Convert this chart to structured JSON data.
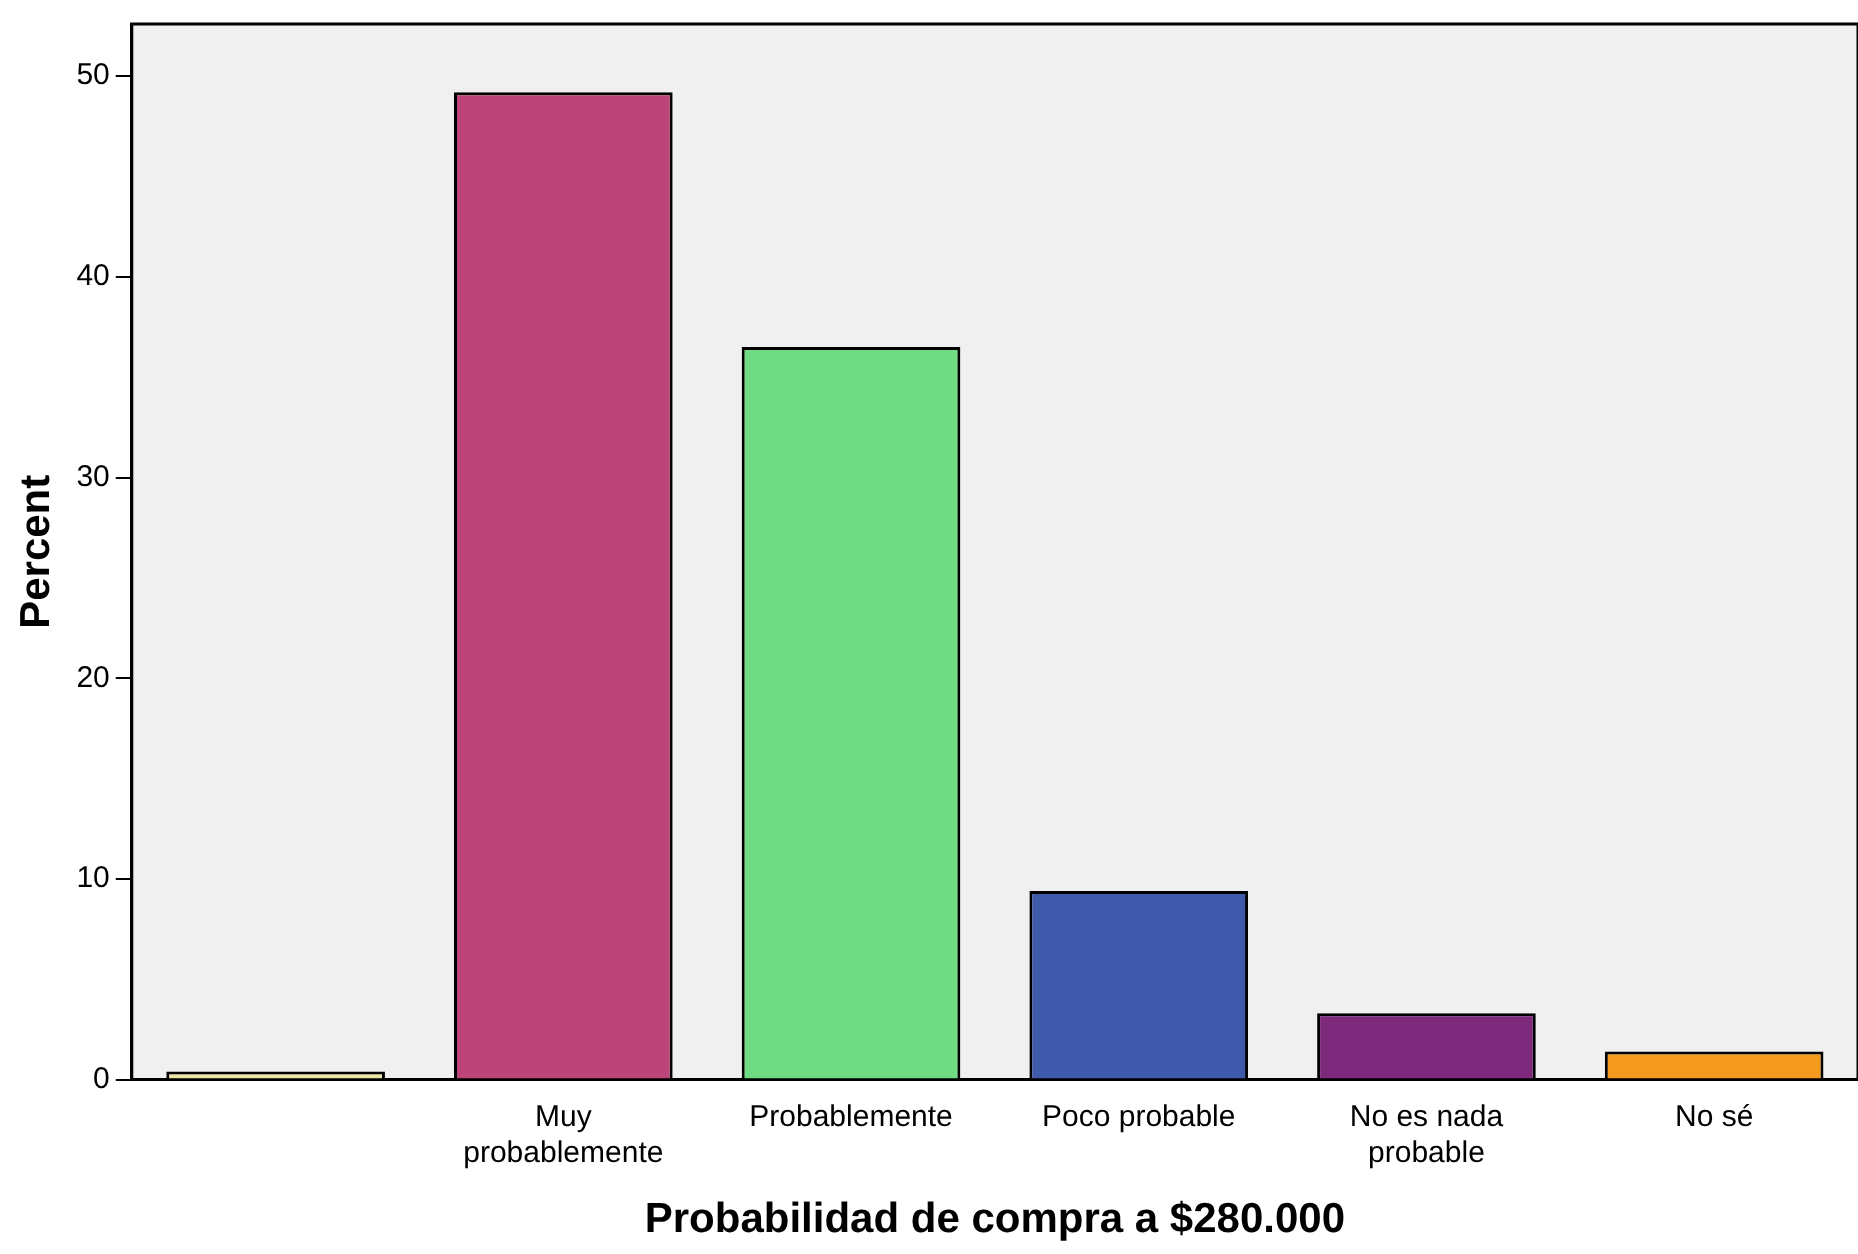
{
  "chart_data": {
    "type": "bar",
    "xlabel": "Probabilidad de compra a $280.000",
    "ylabel": "Percent",
    "categories": [
      null,
      "Muy probablemente",
      "Probablemente",
      "Poco probable",
      "No es nada probable",
      "No sé"
    ],
    "values": [
      0.4,
      49.2,
      36.5,
      9.4,
      3.3,
      1.4
    ],
    "colors": [
      "#ebe5a3",
      "#bc4479",
      "#6fdb82",
      "#3f5aab",
      "#7d2a7d",
      "#f39a1f"
    ],
    "ylim": [
      0,
      52.6
    ],
    "yticks": [
      0,
      10,
      20,
      30,
      40,
      50
    ],
    "grid": false,
    "legend": false
  }
}
